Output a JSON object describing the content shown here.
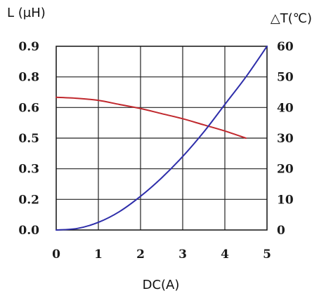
{
  "chart_data": {
    "type": "line",
    "xlabel": "DC(A)",
    "ylabel_left": "L (µH)",
    "ylabel_right": "△T(℃)",
    "xlim": [
      0,
      5
    ],
    "ylim_left": [
      0,
      0.9
    ],
    "ylim_right": [
      0,
      60
    ],
    "x_ticks": [
      "0",
      "1",
      "2",
      "3",
      "4",
      "5"
    ],
    "y_ticks_left": [
      "0.0",
      "0.2",
      "0.3",
      "0.5",
      "0.6",
      "0.8",
      "0.9"
    ],
    "y_ticks_right": [
      "0",
      "10",
      "20",
      "30",
      "40",
      "50",
      "60"
    ],
    "grid": true,
    "series": [
      {
        "axis": "left",
        "color": "#c0282d",
        "x": [
          0,
          0.5,
          1,
          1.5,
          2,
          2.5,
          3,
          3.5,
          4,
          4.5
        ],
        "y": [
          0.65,
          0.645,
          0.635,
          0.615,
          0.595,
          0.57,
          0.545,
          0.515,
          0.485,
          0.45
        ]
      },
      {
        "axis": "right",
        "color": "#2e2eaa",
        "x": [
          0,
          0.5,
          1,
          1.5,
          2,
          2.5,
          3,
          3.5,
          4,
          4.5,
          5
        ],
        "y": [
          0,
          0.5,
          2.5,
          6,
          11,
          17,
          24,
          32,
          41,
          50,
          60
        ]
      }
    ]
  }
}
